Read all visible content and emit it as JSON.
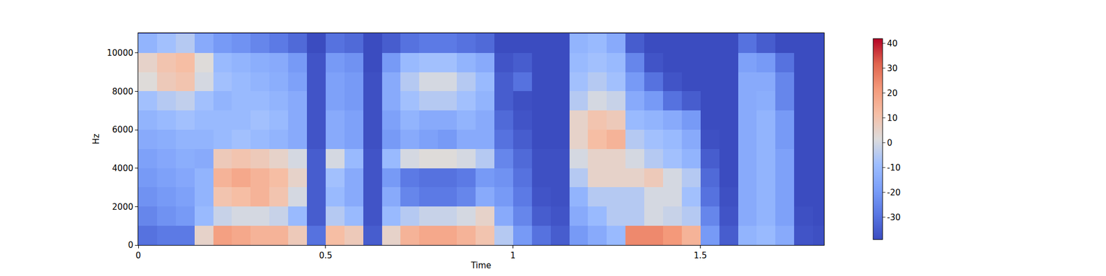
{
  "chart_data": {
    "type": "heatmap",
    "x_label": "Time",
    "y_label": "Hz",
    "x": [
      0.025,
      0.075,
      0.125,
      0.175,
      0.225,
      0.275,
      0.325,
      0.375,
      0.425,
      0.475,
      0.525,
      0.575,
      0.625,
      0.675,
      0.725,
      0.775,
      0.825,
      0.875,
      0.925,
      0.975,
      1.025,
      1.075,
      1.125,
      1.175,
      1.225,
      1.275,
      1.325,
      1.375,
      1.425,
      1.475,
      1.525,
      1.575,
      1.625,
      1.675,
      1.725,
      1.775,
      1.825
    ],
    "y": [
      500,
      1500,
      2500,
      3500,
      4500,
      5500,
      6500,
      7500,
      8500,
      9500,
      10500
    ],
    "cells_by_time": [
      [
        -30,
        -25,
        -22,
        -20,
        -18,
        -15,
        -12,
        -8,
        2,
        5,
        -12
      ],
      [
        -28,
        -22,
        -20,
        -18,
        -16,
        -14,
        -10,
        -5,
        8,
        10,
        -8
      ],
      [
        -28,
        -20,
        -18,
        -16,
        -14,
        -12,
        -8,
        -3,
        10,
        12,
        -5
      ],
      [
        5,
        -10,
        -12,
        -12,
        -15,
        -12,
        -10,
        -8,
        0,
        2,
        -15
      ],
      [
        20,
        -2,
        10,
        15,
        8,
        -10,
        -10,
        -12,
        -8,
        -10,
        -20
      ],
      [
        18,
        0,
        12,
        18,
        10,
        -8,
        -10,
        -10,
        -10,
        -12,
        -22
      ],
      [
        15,
        0,
        15,
        15,
        8,
        -10,
        -8,
        -10,
        -12,
        -14,
        -25
      ],
      [
        15,
        -2,
        10,
        12,
        5,
        -12,
        -10,
        -12,
        -14,
        -15,
        -28
      ],
      [
        8,
        -10,
        0,
        5,
        0,
        -15,
        -15,
        -15,
        -18,
        -20,
        -32
      ],
      [
        -30,
        -35,
        -35,
        -35,
        -35,
        -37,
        -37,
        -37,
        -37,
        -37,
        -39
      ],
      [
        12,
        -5,
        -10,
        -8,
        0,
        -15,
        -15,
        -18,
        -18,
        -20,
        -30
      ],
      [
        8,
        -10,
        -15,
        -15,
        -10,
        -18,
        -18,
        -20,
        -20,
        -22,
        -32
      ],
      [
        -35,
        -37,
        -37,
        -37,
        -37,
        -38,
        -38,
        -38,
        -38,
        -39,
        -39
      ],
      [
        5,
        -10,
        -15,
        -20,
        -10,
        -20,
        -18,
        -15,
        -15,
        -20,
        -35
      ],
      [
        15,
        -5,
        -25,
        -28,
        0,
        -15,
        -12,
        -8,
        -5,
        -10,
        -30
      ],
      [
        18,
        -2,
        -28,
        -30,
        2,
        -18,
        -15,
        -5,
        0,
        -8,
        -28
      ],
      [
        18,
        -2,
        -28,
        -30,
        2,
        -20,
        -15,
        -5,
        0,
        -8,
        -28
      ],
      [
        15,
        0,
        -25,
        -28,
        0,
        -15,
        -12,
        -8,
        -5,
        -12,
        -30
      ],
      [
        10,
        5,
        -15,
        -20,
        -5,
        -15,
        -15,
        -12,
        -10,
        -15,
        -32
      ],
      [
        -5,
        -15,
        -20,
        -22,
        -25,
        -30,
        -32,
        -35,
        -35,
        -37,
        -39
      ],
      [
        -20,
        -25,
        -28,
        -30,
        -32,
        -35,
        -37,
        -38,
        -30,
        -35,
        -39
      ],
      [
        -30,
        -35,
        -37,
        -38,
        -38,
        -39,
        -39,
        -39,
        -39,
        -39,
        -39
      ],
      [
        -35,
        -37,
        -38,
        -38,
        -38,
        -39,
        -39,
        -39,
        -39,
        -39,
        -39
      ],
      [
        -20,
        -15,
        -12,
        -5,
        0,
        5,
        5,
        -5,
        -8,
        -10,
        -12
      ],
      [
        -15,
        -10,
        -5,
        5,
        5,
        12,
        10,
        0,
        -5,
        -8,
        -10
      ],
      [
        -10,
        -5,
        -5,
        5,
        5,
        15,
        8,
        -2,
        -8,
        -10,
        -15
      ],
      [
        25,
        -5,
        -5,
        5,
        0,
        -5,
        -10,
        -15,
        -20,
        -25,
        -35
      ],
      [
        25,
        0,
        0,
        8,
        -5,
        -8,
        -12,
        -20,
        -30,
        -37,
        -39
      ],
      [
        22,
        -2,
        0,
        0,
        -8,
        -10,
        -15,
        -30,
        -37,
        -39,
        -39
      ],
      [
        15,
        -5,
        -8,
        -5,
        -12,
        -15,
        -20,
        -35,
        -39,
        -39,
        -39
      ],
      [
        -20,
        -25,
        -30,
        -32,
        -35,
        -38,
        -39,
        -39,
        -39,
        -39,
        -39
      ],
      [
        -35,
        -37,
        -38,
        -39,
        -39,
        -39,
        -39,
        -39,
        -39,
        -39,
        -39
      ],
      [
        -12,
        -15,
        -15,
        -15,
        -15,
        -15,
        -15,
        -15,
        -15,
        -18,
        -30
      ],
      [
        -10,
        -12,
        -12,
        -12,
        -12,
        -12,
        -12,
        -14,
        -15,
        -20,
        -35
      ],
      [
        -15,
        -18,
        -18,
        -18,
        -18,
        -20,
        -20,
        -25,
        -25,
        -30,
        -39
      ],
      [
        -37,
        -38,
        -39,
        -39,
        -39,
        -39,
        -39,
        -39,
        -39,
        -39,
        -39
      ],
      [
        -38,
        -39,
        -39,
        -39,
        -39,
        -39,
        -39,
        -39,
        -39,
        -39,
        -39
      ]
    ],
    "xlim": [
      0,
      1.83
    ],
    "xticks": [
      0,
      0.5,
      1,
      1.5
    ],
    "ylim": [
      0,
      11025
    ],
    "yticks": [
      0,
      2000,
      4000,
      6000,
      8000,
      10000
    ],
    "colorbar_range": [
      -39,
      42
    ],
    "colorbar_ticks": [
      -30,
      -20,
      -10,
      0,
      10,
      20,
      30,
      40
    ]
  }
}
